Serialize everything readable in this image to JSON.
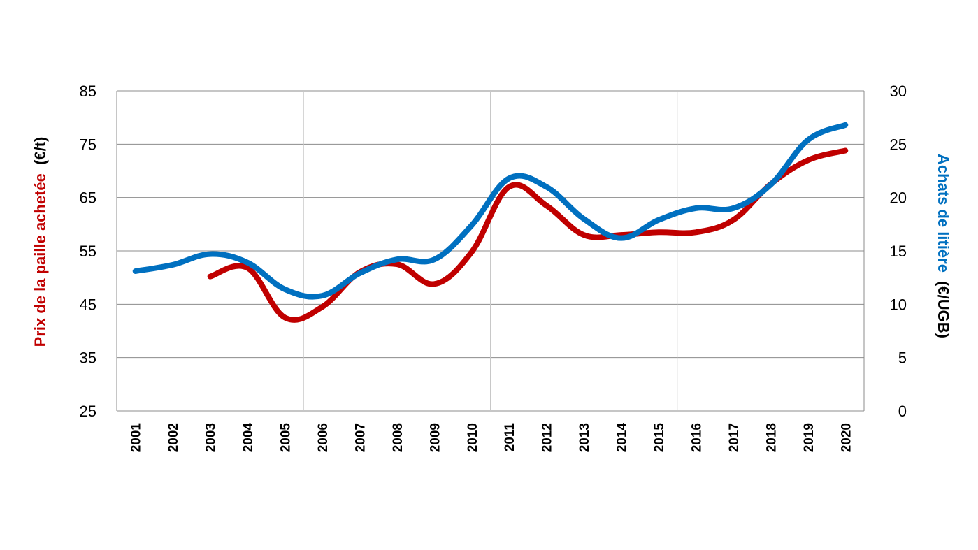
{
  "chart_data": {
    "type": "line",
    "x": [
      "2001",
      "2002",
      "2003",
      "2004",
      "2005",
      "2006",
      "2007",
      "2008",
      "2009",
      "2010",
      "2011",
      "2012",
      "2013",
      "2014",
      "2015",
      "2016",
      "2017",
      "2018",
      "2019",
      "2020"
    ],
    "y_left": {
      "label_main": "Prix de la paille achetée",
      "label_unit": "(€/t)",
      "color": "#c00000",
      "ticks": [
        "85",
        "75",
        "65",
        "55",
        "45",
        "35",
        "25"
      ],
      "ylim": [
        25,
        85
      ]
    },
    "y_right": {
      "label_main": "Achats de litière",
      "label_unit": "(€/UGB)",
      "color": "#0070c0",
      "ticks": [
        "30",
        "25",
        "20",
        "15",
        "10",
        "5",
        "0"
      ],
      "ylim": [
        0,
        30
      ]
    },
    "series": [
      {
        "axis": "left",
        "color": "#c00000",
        "values": [
          null,
          null,
          50.2,
          51.8,
          42.5,
          44.5,
          51.0,
          52.5,
          48.8,
          54.8,
          67.0,
          63.5,
          58.0,
          58.0,
          58.5,
          58.5,
          60.8,
          67.5,
          72.0,
          73.8
        ]
      },
      {
        "axis": "right",
        "color": "#0070c0",
        "values": [
          13.1,
          13.7,
          14.7,
          13.9,
          11.4,
          10.8,
          12.9,
          14.2,
          14.2,
          17.4,
          21.8,
          21.0,
          18.0,
          16.2,
          17.9,
          19.0,
          19.0,
          21.2,
          25.4,
          26.8
        ]
      }
    ],
    "grid": {
      "horizontal": true,
      "vertical_every": 5
    }
  }
}
